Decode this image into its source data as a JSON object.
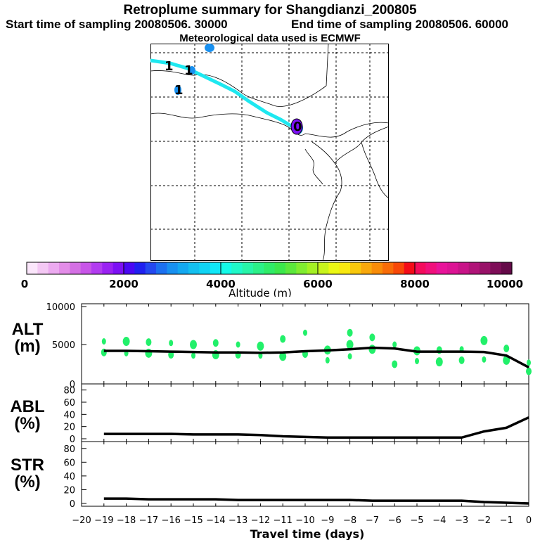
{
  "titles": {
    "main": "Retroplume summary for Shangdianzi_200805",
    "start": "Start time of sampling 20080506. 30000",
    "end": "End time of sampling 20080506. 60000",
    "met": "Meteorological data used is ECMWF"
  },
  "colorbar": {
    "label": "Altitude (m)",
    "ticks": [
      "0",
      "2000",
      "4000",
      "6000",
      "8000",
      "10000"
    ],
    "colors": [
      "#fbe6fb",
      "#f4c8f4",
      "#ecaaf0",
      "#e38de8",
      "#d470e4",
      "#c855e8",
      "#b23cf0",
      "#9a22f2",
      "#7c10f4",
      "#4a08f4",
      "#2020f0",
      "#2448f0",
      "#1c70f0",
      "#1890f0",
      "#14a8f0",
      "#14c0f0",
      "#10d4f4",
      "#10e8f8",
      "#14fae8",
      "#20f8c8",
      "#28f4a8",
      "#2cf088",
      "#30ec68",
      "#3ce84c",
      "#5ce83c",
      "#80ec30",
      "#a4f024",
      "#c8f41c",
      "#ecf814",
      "#f8e810",
      "#f8c80c",
      "#f8a80c",
      "#f88c08",
      "#f86c08",
      "#f84808",
      "#f40c18",
      "#f40c5c",
      "#f0107c",
      "#e8149a",
      "#dc1494",
      "#c81488",
      "#b01478",
      "#981268",
      "#7e0e58",
      "#640a48"
    ]
  },
  "map_markers": [
    {
      "label": "1"
    },
    {
      "label": "1"
    },
    {
      "label": "1"
    },
    {
      "label": "0"
    }
  ],
  "panels": {
    "alt": {
      "label_top": "ALT",
      "label_bottom": "(m)",
      "yticks": [
        "10000",
        "5000",
        "0"
      ]
    },
    "abl": {
      "label_top": "ABL",
      "label_bottom": "(%)",
      "yticks": [
        "80",
        "60",
        "40",
        "20",
        "0"
      ]
    },
    "str": {
      "label_top": "STR",
      "label_bottom": "(%)",
      "yticks": [
        "80",
        "60",
        "40",
        "20",
        "0"
      ]
    }
  },
  "xaxis": {
    "label": "Travel time (days)",
    "ticks": [
      "−20",
      "−19",
      "−18",
      "−17",
      "−16",
      "−15",
      "−14",
      "−13",
      "−12",
      "−11",
      "−10",
      "−9",
      "−8",
      "−7",
      "−6",
      "−5",
      "−4",
      "−3",
      "−2",
      "−1",
      "0"
    ]
  },
  "chart_data": [
    {
      "type": "line",
      "name": "ALT",
      "ylabel": "ALT (m)",
      "xlabel": "Travel time (days)",
      "xlim": [
        -20,
        0
      ],
      "ylim": [
        0,
        10000
      ],
      "x": [
        -19,
        -18,
        -17,
        -16,
        -15,
        -14,
        -13,
        -12,
        -11,
        -10,
        -9,
        -8,
        -7,
        -6,
        -5,
        -4,
        -3,
        -2,
        -1,
        0
      ],
      "values": [
        4200,
        4200,
        4150,
        4100,
        4050,
        4000,
        4000,
        3950,
        4000,
        4150,
        4250,
        4400,
        4600,
        4500,
        4100,
        4100,
        4100,
        4050,
        3600,
        2100
      ],
      "scatter": [
        {
          "x": -19,
          "y": 5400
        },
        {
          "x": -19,
          "y": 4000
        },
        {
          "x": -18,
          "y": 5400
        },
        {
          "x": -18,
          "y": 3900
        },
        {
          "x": -17,
          "y": 5300
        },
        {
          "x": -17,
          "y": 3900
        },
        {
          "x": -16,
          "y": 5200
        },
        {
          "x": -16,
          "y": 3700
        },
        {
          "x": -15,
          "y": 5000
        },
        {
          "x": -15,
          "y": 3600
        },
        {
          "x": -14,
          "y": 5200
        },
        {
          "x": -14,
          "y": 3700
        },
        {
          "x": -13,
          "y": 5000
        },
        {
          "x": -13,
          "y": 3700
        },
        {
          "x": -12,
          "y": 4800
        },
        {
          "x": -12,
          "y": 3600
        },
        {
          "x": -11,
          "y": 5700
        },
        {
          "x": -11,
          "y": 3500
        },
        {
          "x": -10,
          "y": 6500
        },
        {
          "x": -10,
          "y": 3800
        },
        {
          "x": -9,
          "y": 4300
        },
        {
          "x": -9,
          "y": 3000
        },
        {
          "x": -8,
          "y": 6500
        },
        {
          "x": -8,
          "y": 5000
        },
        {
          "x": -8,
          "y": 3500
        },
        {
          "x": -7,
          "y": 5900
        },
        {
          "x": -7,
          "y": 4400
        },
        {
          "x": -6,
          "y": 5000
        },
        {
          "x": -6,
          "y": 2500
        },
        {
          "x": -5,
          "y": 4200
        },
        {
          "x": -5,
          "y": 2900
        },
        {
          "x": -4,
          "y": 4300
        },
        {
          "x": -4,
          "y": 2800
        },
        {
          "x": -3,
          "y": 4400
        },
        {
          "x": -3,
          "y": 3000
        },
        {
          "x": -2,
          "y": 5500
        },
        {
          "x": -2,
          "y": 3100
        },
        {
          "x": -1,
          "y": 4500
        },
        {
          "x": -1,
          "y": 3000
        },
        {
          "x": 0,
          "y": 2700
        },
        {
          "x": 0,
          "y": 1600
        }
      ]
    },
    {
      "type": "line",
      "name": "ABL",
      "ylabel": "ABL (%)",
      "xlabel": "Travel time (days)",
      "xlim": [
        -20,
        0
      ],
      "ylim": [
        0,
        90
      ],
      "x": [
        -19,
        -18,
        -17,
        -16,
        -15,
        -14,
        -13,
        -12,
        -11,
        -10,
        -9,
        -8,
        -7,
        -6,
        -5,
        -4,
        -3,
        -2,
        -1,
        0
      ],
      "values": [
        8,
        8,
        8,
        8,
        7,
        7,
        7,
        6,
        4,
        3,
        2,
        2,
        2,
        2,
        2,
        2,
        2,
        12,
        18,
        35
      ]
    },
    {
      "type": "line",
      "name": "STR",
      "ylabel": "STR (%)",
      "xlabel": "Travel time (days)",
      "xlim": [
        -20,
        0
      ],
      "ylim": [
        0,
        90
      ],
      "x": [
        -19,
        -18,
        -17,
        -16,
        -15,
        -14,
        -13,
        -12,
        -11,
        -10,
        -9,
        -8,
        -7,
        -6,
        -5,
        -4,
        -3,
        -2,
        -1,
        0
      ],
      "values": [
        7,
        7,
        6,
        6,
        6,
        6,
        5,
        5,
        5,
        5,
        5,
        5,
        4,
        4,
        4,
        4,
        4,
        2,
        1,
        0
      ]
    }
  ]
}
